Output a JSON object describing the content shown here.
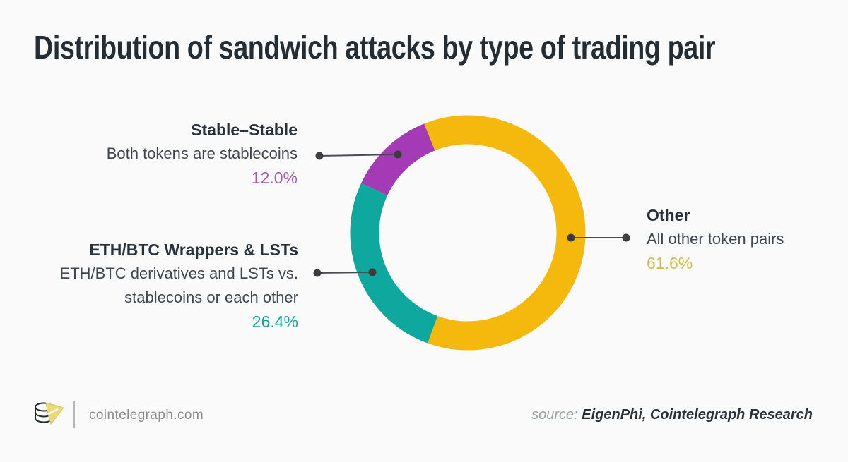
{
  "title": "Distribution of sandwich attacks by type of trading pair",
  "chart_data": {
    "type": "pie",
    "subtype": "donut",
    "title": "Distribution of sandwich attacks by type of trading pair",
    "direction": "clockwise",
    "start_angle_deg": -21.8,
    "legend_position": "callouts",
    "segments": [
      {
        "label": "Other",
        "desc_lines": [
          "All other token pairs"
        ],
        "value": 61.6,
        "display": "61.6%",
        "color": "#F5B80D",
        "pct_color": "#CEBE48"
      },
      {
        "label": "ETH/BTC Wrappers & LSTs",
        "desc_lines": [
          "ETH/BTC derivatives and LSTs vs.",
          "stablecoins or each other"
        ],
        "value": 26.4,
        "display": "26.4%",
        "color": "#0FA89E",
        "pct_color": "#15A099"
      },
      {
        "label": "Stable–Stable",
        "desc_lines": [
          "Both tokens are stablecoins"
        ],
        "value": 12.0,
        "display": "12.0%",
        "color": "#A43AB5",
        "pct_color": "#A55CB8"
      }
    ]
  },
  "footer": {
    "brand": "cointelegraph.com",
    "source_prefix": "source:",
    "source_names": "EigenPhi, Cointelegraph Research",
    "logo": "cointelegraph-coin-logo"
  }
}
